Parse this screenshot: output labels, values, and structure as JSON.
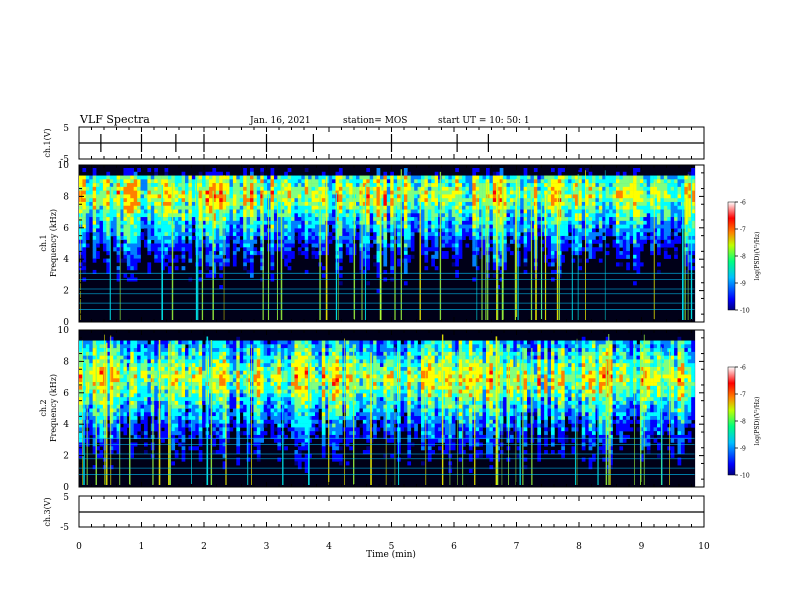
{
  "header": {
    "title": "VLF Spectra",
    "date": "Jan. 16, 2021",
    "station": "station= MOS",
    "start": "start  UT =   10: 50: 1"
  },
  "chart_data": {
    "type": "heatmap",
    "x_axis": {
      "label": "Time (min)",
      "range": [
        0,
        10
      ],
      "ticks": [
        "0",
        "1",
        "2",
        "3",
        "4",
        "5",
        "6",
        "7",
        "8",
        "9",
        "10"
      ]
    },
    "panels": [
      {
        "name": "ch.1(V)",
        "type": "line",
        "ylabel": "ch.1(V)",
        "ylim": [
          -5,
          5
        ],
        "yticks": [
          "5",
          "-5"
        ],
        "level": 0,
        "spike_times_min": [
          0.35,
          1.0,
          1.55,
          2.0,
          3.0,
          3.75,
          5.0,
          6.05,
          6.55,
          7.8,
          8.6
        ]
      },
      {
        "name": "ch.1",
        "type": "heatmap",
        "ylabel_channel": "ch.1",
        "ylabel": "Frequency (kHz)",
        "ylim": [
          0,
          10
        ],
        "yticks": [
          "0",
          "2",
          "4",
          "6",
          "8",
          "10"
        ],
        "data_extent_min": [
          0,
          9.85
        ],
        "colorbar": {
          "label": "log(PSD)(V²/Hz)",
          "range": [
            -10,
            -6
          ],
          "ticks": [
            "-6",
            "-7",
            "-8",
            "-9",
            "-10"
          ]
        }
      },
      {
        "name": "ch.2",
        "type": "heatmap",
        "ylabel_channel": "ch.2",
        "ylabel": "Frequency (kHz)",
        "ylim": [
          0,
          10
        ],
        "yticks": [
          "0",
          "2",
          "4",
          "6",
          "8",
          "10"
        ],
        "data_extent_min": [
          0,
          9.85
        ],
        "colorbar": {
          "label": "log(PSD)(V²/Hz)",
          "range": [
            -10,
            -6
          ],
          "ticks": [
            "-6",
            "-7",
            "-8",
            "-9",
            "-10"
          ]
        }
      },
      {
        "name": "ch.3(V)",
        "type": "line",
        "ylabel": "ch.3(V)",
        "ylim": [
          -5,
          5
        ],
        "yticks": [
          "5",
          "-5"
        ],
        "level": 0
      }
    ],
    "colormap": [
      "#00007f",
      "#0000ff",
      "#0080ff",
      "#00ffff",
      "#80ff80",
      "#ffff00",
      "#ff8000",
      "#ff0000",
      "#ffc0c0",
      "#ffffff"
    ]
  }
}
